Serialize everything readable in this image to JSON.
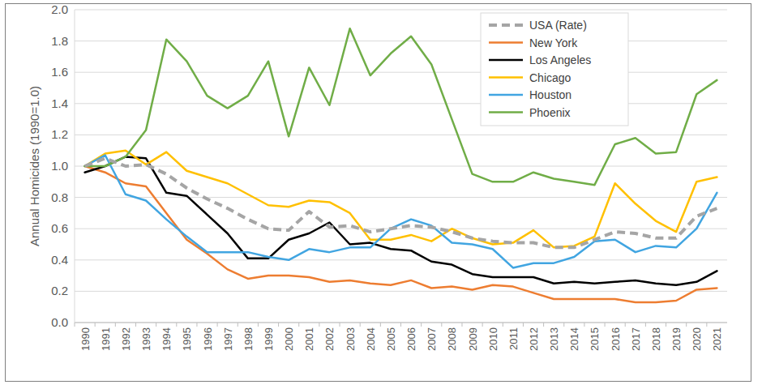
{
  "chart_data": {
    "type": "line",
    "ylabel": "Annual Homicides (1990=1.0)",
    "categories": [
      "1990",
      "1991",
      "1992",
      "1993",
      "1994",
      "1995",
      "1996",
      "1997",
      "1998",
      "1999",
      "2000",
      "2001",
      "2002",
      "2003",
      "2004",
      "2005",
      "2006",
      "2007",
      "2008",
      "2009",
      "2010",
      "2011",
      "2012",
      "2013",
      "2014",
      "2015",
      "2016",
      "2017",
      "2018",
      "2019",
      "2020",
      "2021"
    ],
    "ylim": [
      0,
      2
    ],
    "yticks": [
      {
        "value": 0,
        "label": "0.0"
      },
      0.2,
      0.4,
      0.6,
      0.8,
      {
        "value": 1,
        "label": "1.0"
      },
      1.2,
      1.4,
      1.6,
      1.8,
      {
        "value": 2,
        "label": "2.0"
      }
    ],
    "grid": true,
    "legend": "top-right",
    "series": [
      {
        "name": "USA (Rate)",
        "color": "#a5a5a5",
        "line_style": "dashed",
        "values": [
          1.0,
          1.05,
          1.0,
          1.01,
          0.95,
          0.86,
          0.79,
          0.73,
          0.66,
          0.6,
          0.59,
          0.71,
          0.61,
          0.62,
          0.58,
          0.6,
          0.62,
          0.61,
          0.58,
          0.54,
          0.52,
          0.51,
          0.51,
          0.48,
          0.48,
          0.53,
          0.58,
          0.57,
          0.54,
          0.54,
          0.68,
          0.73
        ]
      },
      {
        "name": "New York",
        "color": "#ed7d31",
        "line_style": "solid",
        "values": [
          1.0,
          0.96,
          0.89,
          0.87,
          0.7,
          0.53,
          0.44,
          0.34,
          0.28,
          0.3,
          0.3,
          0.29,
          0.26,
          0.27,
          0.25,
          0.24,
          0.27,
          0.22,
          0.23,
          0.21,
          0.24,
          0.23,
          0.19,
          0.15,
          0.15,
          0.15,
          0.15,
          0.13,
          0.13,
          0.14,
          0.21,
          0.22
        ]
      },
      {
        "name": "Los Angeles",
        "color": "#000000",
        "line_style": "solid",
        "values": [
          0.96,
          1.0,
          1.06,
          1.05,
          0.83,
          0.81,
          0.69,
          0.57,
          0.41,
          0.41,
          0.53,
          0.57,
          0.64,
          0.5,
          0.51,
          0.47,
          0.46,
          0.39,
          0.37,
          0.31,
          0.29,
          0.29,
          0.29,
          0.25,
          0.26,
          0.25,
          0.26,
          0.27,
          0.25,
          0.24,
          0.26,
          0.33
        ]
      },
      {
        "name": "Chicago",
        "color": "#ffc000",
        "line_style": "solid",
        "values": [
          1.0,
          1.08,
          1.1,
          1.01,
          1.09,
          0.97,
          0.93,
          0.89,
          0.82,
          0.75,
          0.74,
          0.78,
          0.77,
          0.7,
          0.53,
          0.53,
          0.56,
          0.52,
          0.6,
          0.54,
          0.5,
          0.51,
          0.59,
          0.48,
          0.49,
          0.55,
          0.89,
          0.76,
          0.65,
          0.58,
          0.9,
          0.93
        ]
      },
      {
        "name": "Houston",
        "color": "#41a5e1",
        "line_style": "solid",
        "values": [
          1.0,
          1.07,
          0.82,
          0.78,
          0.66,
          0.55,
          0.45,
          0.45,
          0.45,
          0.42,
          0.4,
          0.47,
          0.45,
          0.48,
          0.48,
          0.6,
          0.66,
          0.62,
          0.51,
          0.5,
          0.47,
          0.35,
          0.38,
          0.38,
          0.42,
          0.52,
          0.53,
          0.45,
          0.49,
          0.48,
          0.6,
          0.83
        ]
      },
      {
        "name": "Phoenix",
        "color": "#70ad47",
        "line_style": "solid",
        "values": [
          1.0,
          1.0,
          1.06,
          1.23,
          1.81,
          1.67,
          1.45,
          1.37,
          1.45,
          1.67,
          1.19,
          1.63,
          1.39,
          1.88,
          1.58,
          1.72,
          1.83,
          1.65,
          1.3,
          0.95,
          0.9,
          0.9,
          0.96,
          0.92,
          0.9,
          0.88,
          1.14,
          1.18,
          1.08,
          1.09,
          1.46,
          1.55
        ]
      }
    ]
  }
}
